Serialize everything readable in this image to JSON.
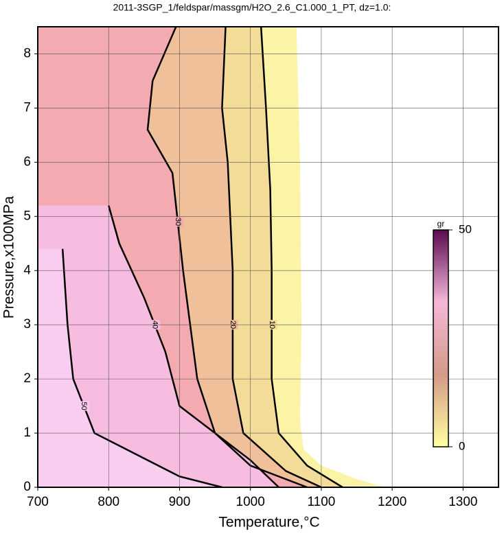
{
  "chart_data": {
    "type": "contour",
    "title": "2011-3SGP_1/feldspar/massgm/H2O_2.6_C1.000_1_PT, dz=1.0:",
    "x_label": "Temperature,°C",
    "y_label": "Pressure,x100MPa",
    "xlim": [
      700,
      1350
    ],
    "ylim": [
      0,
      8.5
    ],
    "xticks": [
      700,
      800,
      900,
      1000,
      1100,
      1200,
      1300
    ],
    "yticks": [
      0,
      1,
      2,
      3,
      4,
      5,
      6,
      7,
      8
    ],
    "grid": true,
    "data_edge": {
      "color": "#fbf3a6",
      "x": [
        1065,
        1070,
        1072,
        1070,
        1075,
        1100,
        1150,
        1190
      ],
      "y": [
        8.5,
        6,
        3,
        1.2,
        0.7,
        0.4,
        0.15,
        0
      ]
    },
    "contours": [
      {
        "level": 10,
        "fill": "#f3dc98",
        "x": [
          1015,
          1022,
          1028,
          1030,
          1030,
          1040,
          1080,
          1130
        ],
        "y": [
          8.5,
          7,
          5.5,
          4,
          2,
          1,
          0.4,
          0
        ]
      },
      {
        "level": 20,
        "fill": "#f0c09a",
        "x": [
          965,
          960,
          968,
          975,
          975,
          990,
          1050,
          1100
        ],
        "y": [
          8.5,
          7,
          6,
          4,
          2,
          1,
          0.3,
          0
        ]
      },
      {
        "level": 30,
        "fill": "#f3aab0",
        "x": [
          895,
          862,
          855,
          890,
          905,
          925,
          950,
          1000,
          1080
        ],
        "y": [
          8.5,
          7.5,
          6.6,
          5.8,
          4,
          2,
          1,
          0.4,
          0
        ]
      },
      {
        "level": 40,
        "fill": "#f6bde0",
        "x": [
          800,
          815,
          850,
          880,
          900,
          1000,
          1040
        ],
        "y": [
          5.2,
          4.5,
          3.5,
          2.5,
          1.5,
          0.5,
          0
        ]
      },
      {
        "level": 50,
        "fill": "#f9cdf0",
        "x": [
          735,
          742,
          750,
          780,
          900,
          960
        ],
        "y": [
          4.4,
          3,
          2,
          1,
          0.2,
          0
        ]
      }
    ],
    "colorbar": {
      "label": "gr",
      "ticks": [
        0,
        50
      ],
      "colors": [
        "#ffffa0",
        "#d49a88",
        "#f4b8d8",
        "#5a0a50"
      ]
    }
  }
}
